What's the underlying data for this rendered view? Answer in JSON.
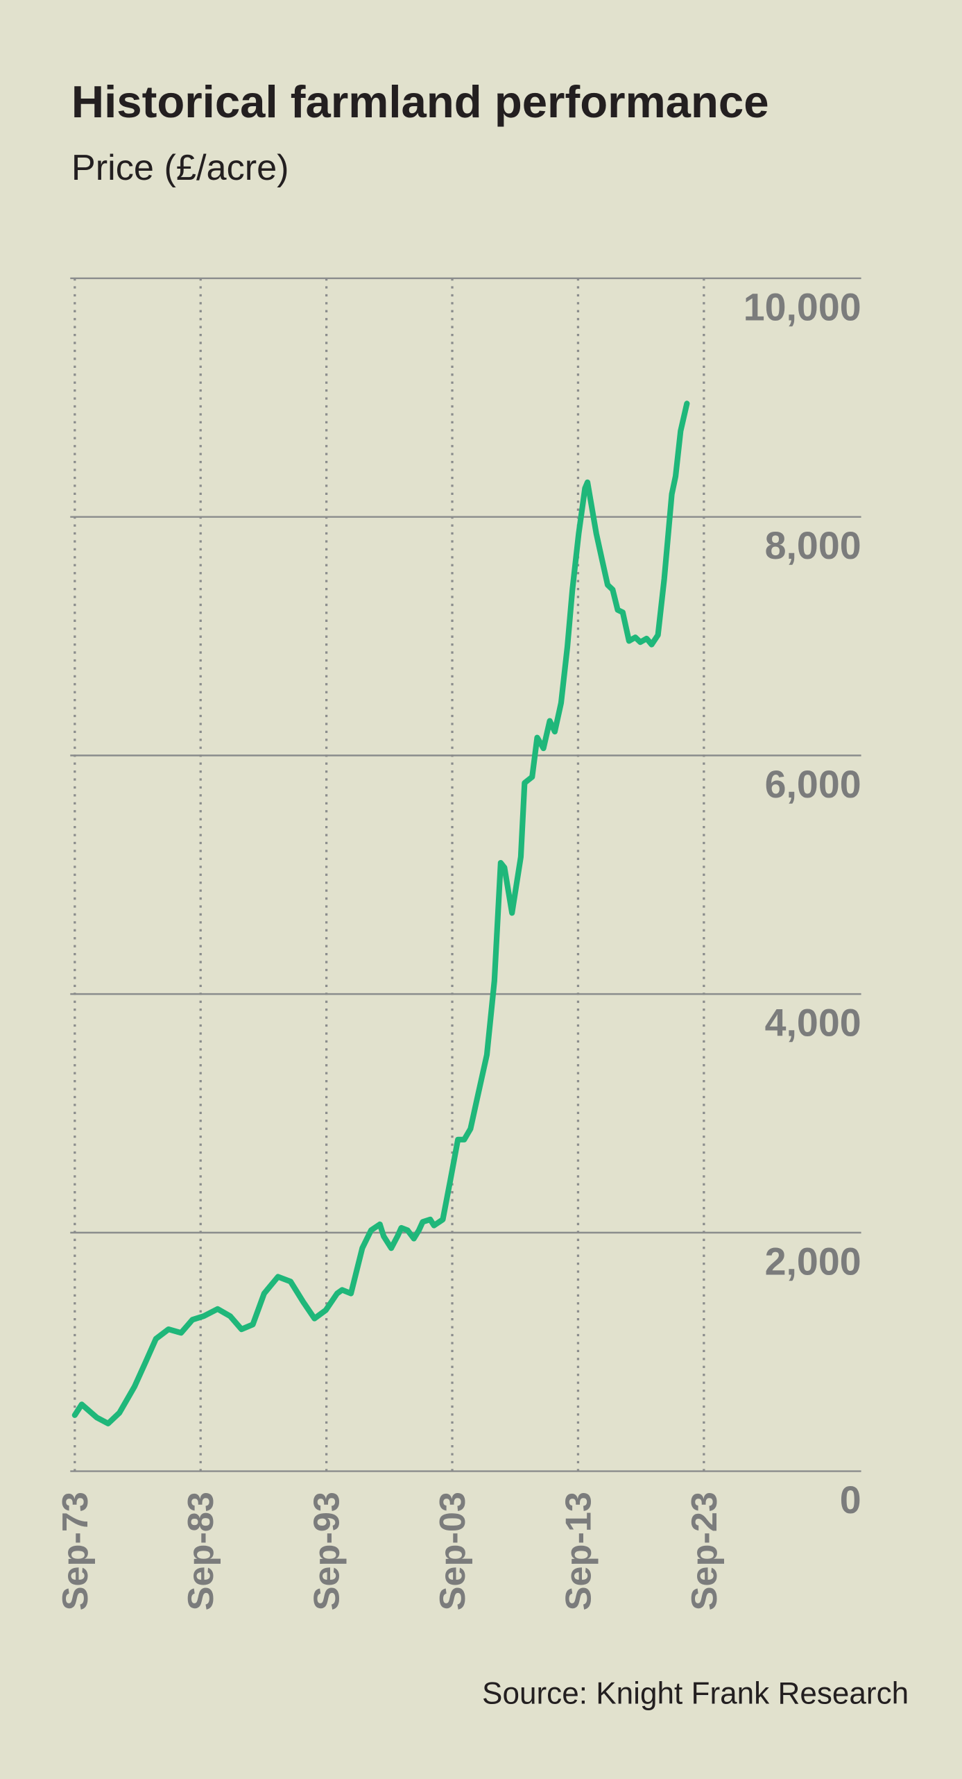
{
  "chart_data": {
    "type": "line",
    "title": "Historical farmland performance",
    "subtitle": "Price (£/acre)",
    "source": "Source: Knight Frank Research",
    "color": "#1fb77a",
    "x": [
      1973.75,
      1974.3,
      1975.5,
      1976.4,
      1977.3,
      1978.5,
      1979.4,
      1980.2,
      1981.2,
      1982.2,
      1983.1,
      1984.0,
      1985.1,
      1986.1,
      1987.0,
      1987.9,
      1988.8,
      1989.9,
      1990.9,
      1991.9,
      1992.8,
      1993.7,
      1994.6,
      1995.0,
      1995.7,
      1996.6,
      1997.3,
      1998.0,
      1998.3,
      1998.9,
      1999.4,
      1999.7,
      2000.2,
      2000.7,
      2001.1,
      2001.4,
      2002.0,
      2002.3,
      2003.0,
      2003.6,
      2004.2,
      2004.7,
      2005.2,
      2005.7,
      2006.5,
      2007.1,
      2007.6,
      2007.9,
      2008.5,
      2009.2,
      2009.5,
      2010.1,
      2010.5,
      2011.0,
      2011.5,
      2011.9,
      2012.4,
      2012.9,
      2013.3,
      2013.8,
      2014.3,
      2014.5,
      2015.2,
      2015.7,
      2016.1,
      2016.5,
      2016.9,
      2017.3,
      2017.8,
      2018.3,
      2018.7,
      2019.2,
      2019.6,
      2020.1,
      2020.6,
      2021.2,
      2021.5,
      2021.9,
      2022.4
    ],
    "values": [
      470,
      560,
      450,
      400,
      490,
      710,
      920,
      1110,
      1190,
      1160,
      1270,
      1300,
      1360,
      1300,
      1190,
      1230,
      1490,
      1630,
      1590,
      1420,
      1280,
      1350,
      1490,
      1520,
      1490,
      1870,
      2020,
      2070,
      1970,
      1870,
      1970,
      2040,
      2020,
      1950,
      2020,
      2090,
      2110,
      2060,
      2110,
      2440,
      2780,
      2780,
      2870,
      3110,
      3490,
      4110,
      5100,
      5060,
      4680,
      5150,
      5770,
      5820,
      6150,
      6060,
      6290,
      6200,
      6440,
      6910,
      7390,
      7860,
      8240,
      8290,
      7860,
      7620,
      7430,
      7390,
      7220,
      7200,
      6960,
      6990,
      6950,
      6980,
      6930,
      7010,
      7480,
      8190,
      8340,
      8720,
      8950
    ],
    "xlim": [
      1973.75,
      2036.25
    ],
    "xticks": [
      {
        "value": 1973.75,
        "label": "Sep-73"
      },
      {
        "value": 1983.75,
        "label": "Sep-83"
      },
      {
        "value": 1993.75,
        "label": "Sep-93"
      },
      {
        "value": 2003.75,
        "label": "Sep-03"
      },
      {
        "value": 2013.75,
        "label": "Sep-13"
      },
      {
        "value": 2023.75,
        "label": "Sep-23"
      }
    ],
    "ylim": [
      0,
      10000
    ],
    "yticks": [
      0,
      {
        "value": 2000,
        "label": "2,000"
      },
      {
        "value": 4000,
        "label": "4,000"
      },
      {
        "value": 6000,
        "label": "6,000"
      },
      {
        "value": 8000,
        "label": "8,000"
      },
      {
        "value": 10000,
        "label": "10,000"
      }
    ],
    "grid": true
  }
}
